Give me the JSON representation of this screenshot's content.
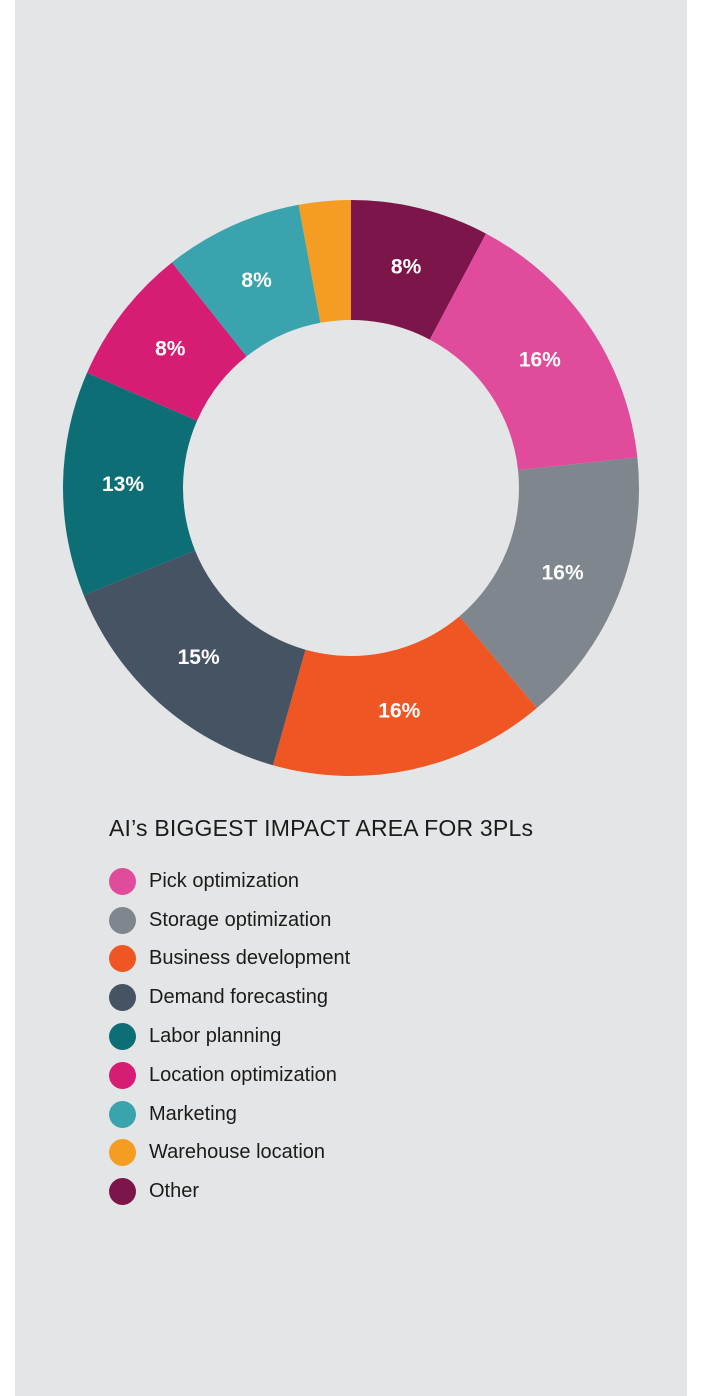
{
  "chart_data": {
    "type": "pie",
    "donut": true,
    "title": "AI’s BIGGEST IMPACT AREA FOR 3PLs",
    "categories": [
      "Pick optimization",
      "Storage optimization",
      "Business development",
      "Demand forecasting",
      "Labor planning",
      "Location optimization",
      "Marketing",
      "Warehouse location",
      "Other"
    ],
    "values": [
      16,
      16,
      16,
      15,
      13,
      8,
      8,
      3,
      8
    ],
    "data_labels": [
      "16%",
      "16%",
      "16%",
      "15%",
      "13%",
      "8%",
      "8%",
      "",
      "8%"
    ],
    "colors": [
      "#e04b9b",
      "#80868e",
      "#ef5623",
      "#455363",
      "#0d6e75",
      "#d61c73",
      "#3aa3ad",
      "#f59c23",
      "#7c164a"
    ],
    "start_category": "Other",
    "direction": "clockwise",
    "legend_position": "bottom-left"
  }
}
